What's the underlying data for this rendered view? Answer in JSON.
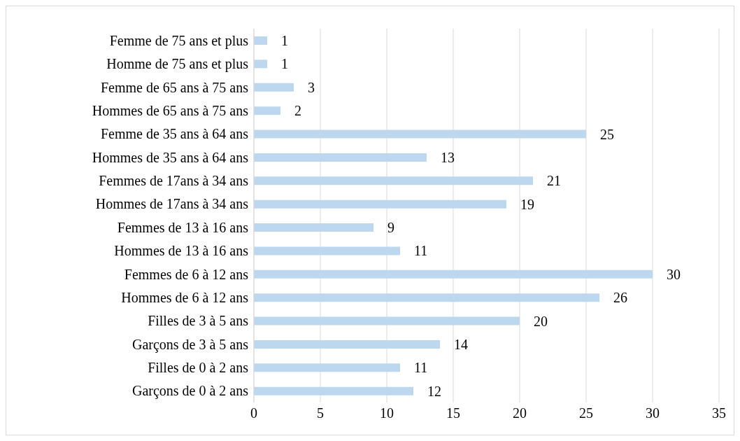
{
  "chart_data": {
    "type": "bar",
    "orientation": "horizontal",
    "categories": [
      "Femme de 75 ans et plus",
      "Homme de 75 ans et plus",
      "Femme de 65 ans à 75 ans",
      "Hommes de 65 ans à 75 ans",
      "Femme de 35 ans à 64 ans",
      "Hommes de 35 ans à 64 ans",
      "Femmes de 17ans à 34 ans",
      "Hommes de 17ans à 34 ans",
      "Femmes de 13 à 16 ans",
      "Hommes de 13 à 16 ans",
      "Femmes de 6 à 12 ans",
      "Hommes de 6 à 12 ans",
      "Filles de 3 à 5 ans",
      "Garçons de 3 à 5 ans",
      "Filles de 0 à 2 ans",
      "Garçons de 0 à 2 ans"
    ],
    "values": [
      1,
      1,
      3,
      2,
      25,
      13,
      21,
      19,
      9,
      11,
      30,
      26,
      20,
      14,
      11,
      12
    ],
    "color": "#bdd7ee",
    "xlim": [
      0,
      35
    ],
    "xticks": [
      0,
      5,
      10,
      15,
      20,
      25,
      30,
      35
    ],
    "grid": "x",
    "data_labels": true
  }
}
